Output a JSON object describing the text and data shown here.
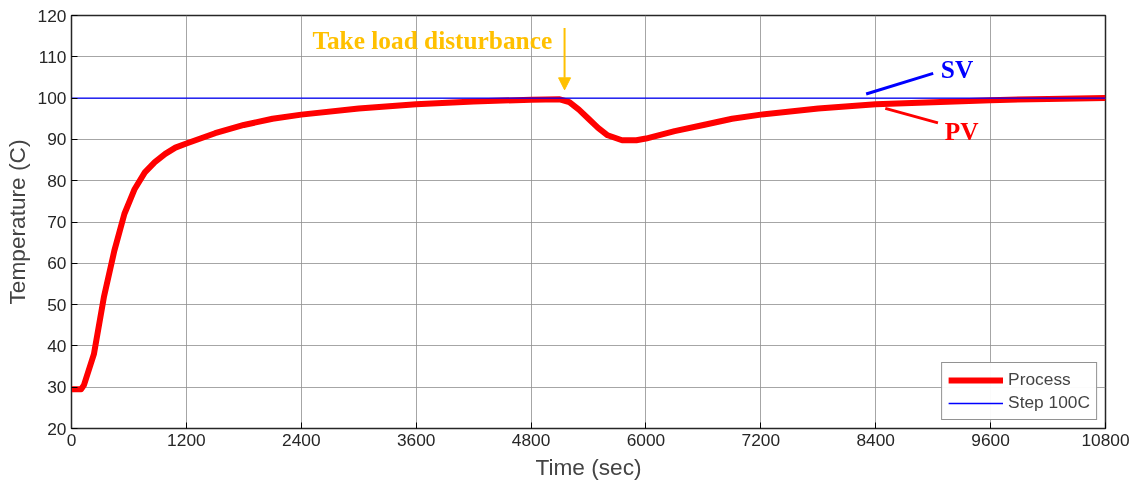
{
  "chart_data": {
    "type": "line",
    "xlabel": "Time (sec)",
    "ylabel": "Temperature (C)",
    "xlim": [
      0,
      10800
    ],
    "ylim": [
      20,
      120
    ],
    "xticks": [
      0,
      1200,
      2400,
      3600,
      4800,
      6000,
      7200,
      8400,
      9600,
      10800
    ],
    "yticks": [
      20,
      30,
      40,
      50,
      60,
      70,
      80,
      90,
      100,
      110,
      120
    ],
    "grid": true,
    "legend": "bottom right",
    "series": [
      {
        "name": "Process",
        "color": "#ff0000",
        "x": [
          0,
          100,
          130,
          234,
          340,
          447,
          553,
          660,
          766,
          870,
          979,
          1085,
          1200,
          1500,
          1800,
          2100,
          2400,
          3000,
          3600,
          4200,
          4800,
          5100,
          5200,
          5300,
          5400,
          5500,
          5600,
          5750,
          5900,
          6000,
          6300,
          6600,
          6900,
          7200,
          7800,
          8400,
          9000,
          9600,
          10200,
          10800
        ],
        "values": [
          29.5,
          29.5,
          30.5,
          38,
          52,
          63,
          72,
          78,
          82,
          84.5,
          86.5,
          88,
          89,
          91.5,
          93.5,
          95,
          96,
          97.5,
          98.5,
          99.2,
          99.6,
          99.7,
          99,
          97.2,
          95,
          92.8,
          91,
          89.8,
          89.8,
          90.2,
          92,
          93.5,
          95,
          96,
          97.5,
          98.5,
          99,
          99.5,
          99.8,
          100
        ]
      },
      {
        "name": "Step 100C",
        "color": "#0000ff",
        "x": [
          0,
          10800
        ],
        "values": [
          100,
          100
        ]
      }
    ],
    "annotations": [
      {
        "text": "Take load disturbance",
        "x": 5150,
        "y": 100
      },
      {
        "text": "SV",
        "x": 8300,
        "y": 100
      },
      {
        "text": "PV",
        "x": 8500,
        "y": 98.5
      }
    ]
  }
}
